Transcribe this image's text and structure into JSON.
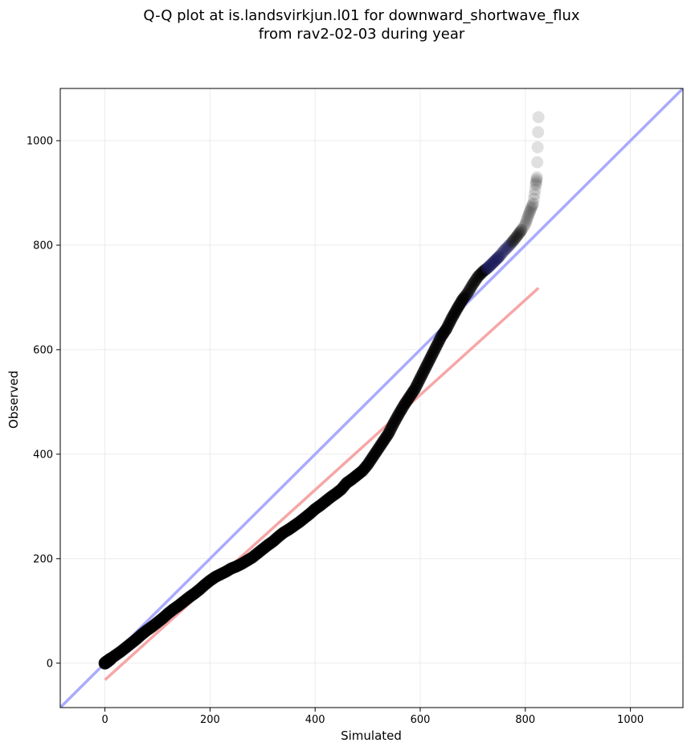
{
  "chart_data": {
    "type": "scatter",
    "title_line1": "Q-Q plot at is.landsvirkjun.l01 for downward_shortwave_flux",
    "title_line2": "from rav2-02-03 during year",
    "xlabel": "Simulated",
    "ylabel": "Observed",
    "xlim": [
      -85,
      1100
    ],
    "ylim": [
      -85,
      1100
    ],
    "xticks": [
      0,
      200,
      400,
      600,
      800,
      1000
    ],
    "yticks": [
      0,
      200,
      400,
      600,
      800,
      1000
    ],
    "grid": true,
    "reference_line": {
      "name": "1:1",
      "color": "#aaaaff",
      "from": [
        -85,
        -85
      ],
      "to": [
        1100,
        1100
      ]
    },
    "fit_line": {
      "color": "#f6a6a6",
      "from": [
        0,
        -32
      ],
      "to": [
        825,
        718
      ]
    },
    "quantiles": {
      "x": [
        0,
        5,
        10,
        20,
        30,
        40,
        50,
        60,
        70,
        80,
        90,
        100,
        110,
        120,
        130,
        140,
        150,
        160,
        170,
        180,
        190,
        200,
        210,
        220,
        230,
        240,
        250,
        260,
        270,
        280,
        290,
        300,
        310,
        320,
        330,
        340,
        350,
        360,
        370,
        380,
        390,
        400,
        410,
        420,
        430,
        440,
        450,
        460,
        470,
        480,
        490,
        500,
        510,
        520,
        530,
        540,
        550,
        560,
        570,
        580,
        590,
        600,
        610,
        620,
        630,
        640,
        650,
        660,
        670,
        680,
        690,
        700,
        710,
        720,
        730,
        740,
        750,
        760,
        770,
        780,
        790,
        800,
        805,
        810,
        815,
        820,
        822,
        825
      ],
      "y": [
        0,
        3,
        8,
        15,
        22,
        30,
        38,
        46,
        55,
        63,
        70,
        78,
        86,
        95,
        103,
        110,
        118,
        126,
        133,
        141,
        150,
        158,
        165,
        170,
        175,
        181,
        185,
        190,
        196,
        202,
        210,
        218,
        226,
        233,
        242,
        250,
        256,
        263,
        270,
        278,
        286,
        295,
        302,
        310,
        318,
        325,
        333,
        345,
        352,
        360,
        368,
        380,
        395,
        410,
        425,
        440,
        460,
        478,
        495,
        510,
        525,
        545,
        565,
        585,
        605,
        625,
        640,
        660,
        678,
        695,
        708,
        725,
        740,
        750,
        758,
        768,
        778,
        790,
        800,
        812,
        825,
        840,
        855,
        868,
        880,
        915,
        930,
        1045
      ]
    }
  }
}
